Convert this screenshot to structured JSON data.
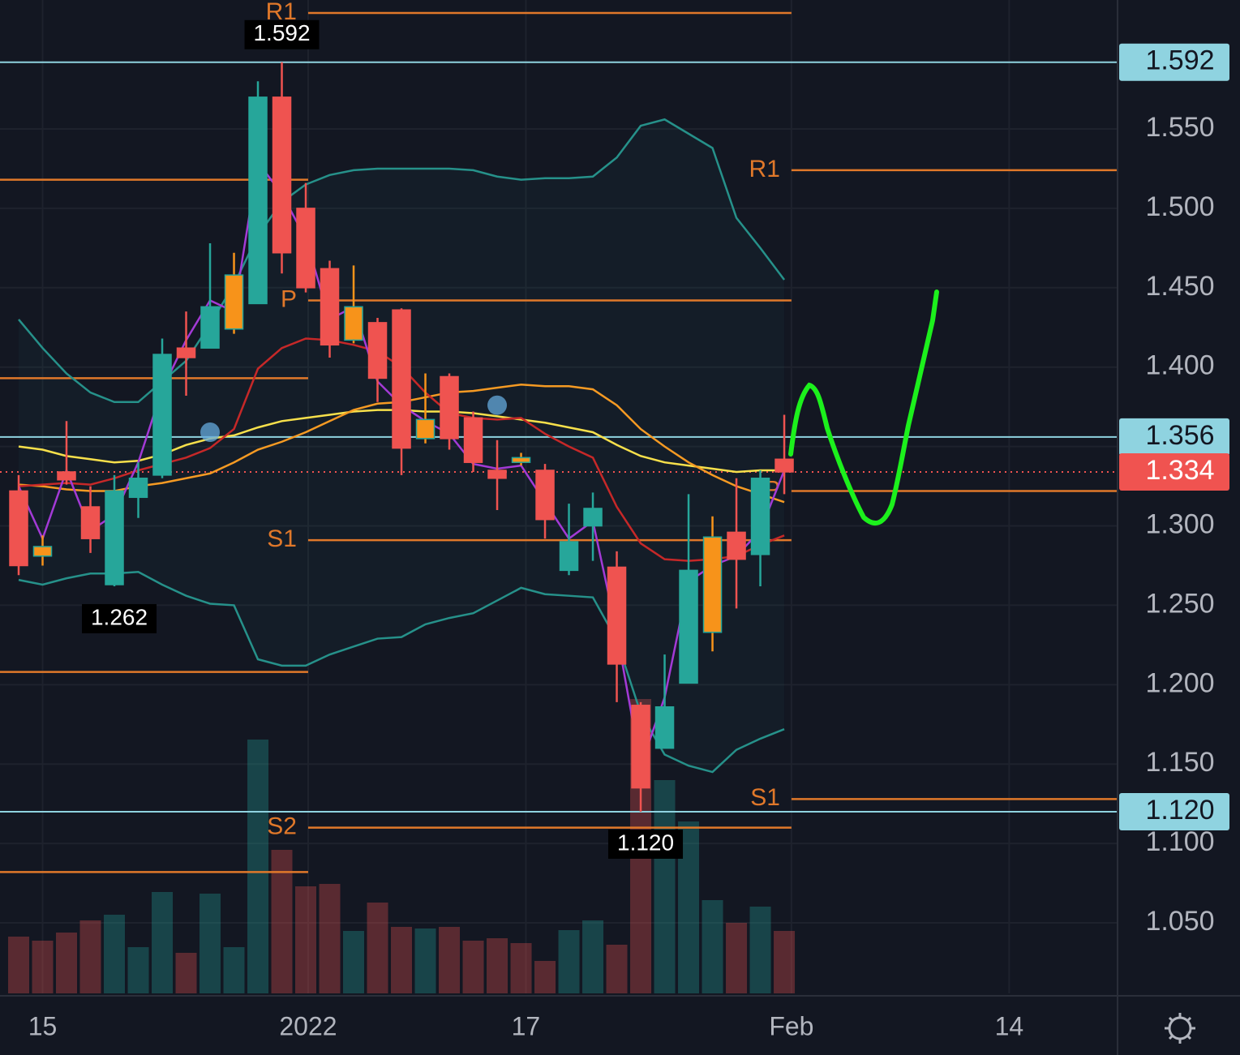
{
  "chart_data": {
    "type": "candlestick",
    "x": [
      0,
      1,
      2,
      3,
      4,
      5,
      6,
      7,
      8,
      9,
      10,
      11,
      12,
      13,
      14,
      15,
      16,
      17,
      18,
      19,
      20,
      21,
      22,
      23,
      24,
      25,
      26,
      27,
      28,
      29,
      30,
      31,
      32
    ],
    "open": [
      1.322,
      1.287,
      1.334,
      1.312,
      1.263,
      1.318,
      1.332,
      1.412,
      1.412,
      1.424,
      1.44,
      1.57,
      1.5,
      1.462,
      1.417,
      1.428,
      1.436,
      1.355,
      1.394,
      1.368,
      1.335,
      1.343,
      1.335,
      1.272,
      1.3,
      1.274,
      1.187,
      1.16,
      1.201,
      1.233,
      1.296,
      1.282,
      1.342
    ],
    "high": [
      1.332,
      1.294,
      1.366,
      1.325,
      1.332,
      1.34,
      1.418,
      1.435,
      1.478,
      1.472,
      1.58,
      1.592,
      1.516,
      1.467,
      1.464,
      1.431,
      1.437,
      1.396,
      1.396,
      1.372,
      1.354,
      1.346,
      1.339,
      1.314,
      1.321,
      1.284,
      1.189,
      1.219,
      1.32,
      1.306,
      1.33,
      1.335,
      1.37
    ],
    "low": [
      1.269,
      1.275,
      1.326,
      1.283,
      1.262,
      1.305,
      1.33,
      1.382,
      1.412,
      1.421,
      1.44,
      1.459,
      1.447,
      1.406,
      1.415,
      1.378,
      1.332,
      1.352,
      1.348,
      1.334,
      1.31,
      1.338,
      1.292,
      1.269,
      1.278,
      1.189,
      1.12,
      1.16,
      1.201,
      1.221,
      1.248,
      1.262,
      1.32
    ],
    "close": [
      1.275,
      1.281,
      1.329,
      1.292,
      1.322,
      1.33,
      1.408,
      1.406,
      1.438,
      1.458,
      1.57,
      1.472,
      1.45,
      1.414,
      1.438,
      1.393,
      1.349,
      1.367,
      1.355,
      1.34,
      1.33,
      1.34,
      1.304,
      1.29,
      1.311,
      1.213,
      1.135,
      1.186,
      1.272,
      1.293,
      1.279,
      1.33,
      1.334
    ],
    "colors": [
      "#ef5350",
      "#f7931a",
      "#ef5350",
      "#ef5350",
      "#26a69a",
      "#26a69a",
      "#26a69a",
      "#ef5350",
      "#26a69a",
      "#f7931a",
      "#26a69a",
      "#ef5350",
      "#ef5350",
      "#ef5350",
      "#f7931a",
      "#ef5350",
      "#ef5350",
      "#f7931a",
      "#ef5350",
      "#ef5350",
      "#ef5350",
      "#f7931a",
      "#ef5350",
      "#26a69a",
      "#26a69a",
      "#ef5350",
      "#ef5350",
      "#26a69a",
      "#26a69a",
      "#f7931a",
      "#ef5350",
      "#26a69a",
      "#ef5350"
    ],
    "volume": [
      70,
      65,
      75,
      90,
      97,
      57,
      125,
      50,
      123,
      57,
      313,
      177,
      132,
      135,
      77,
      112,
      82,
      80,
      82,
      65,
      68,
      62,
      40,
      78,
      90,
      60,
      363,
      263,
      212,
      115,
      87,
      107,
      77
    ],
    "vlim": [
      0,
      400
    ],
    "xlim": [
      -0.78,
      45.93
    ],
    "xticks": [
      {
        "value": 1,
        "label": "15"
      },
      {
        "value": 12.1,
        "label": "2022"
      },
      {
        "value": 21.2,
        "label": "17"
      },
      {
        "value": 32.3,
        "label": "Feb"
      },
      {
        "value": 41.4,
        "label": "14"
      }
    ],
    "ylim": [
      1.0056,
      1.6312
    ],
    "yticks": [
      {
        "value": 1.05,
        "label": "1.050"
      },
      {
        "value": 1.1,
        "label": "1.100"
      },
      {
        "value": 1.15,
        "label": "1.150"
      },
      {
        "value": 1.2,
        "label": "1.200"
      },
      {
        "value": 1.25,
        "label": "1.250"
      },
      {
        "value": 1.3,
        "label": "1.300"
      },
      {
        "value": 1.35,
        "label": "1.350"
      },
      {
        "value": 1.4,
        "label": "1.400"
      },
      {
        "value": 1.45,
        "label": "1.450"
      },
      {
        "value": 1.5,
        "label": "1.500"
      },
      {
        "value": 1.55,
        "label": "1.550"
      }
    ],
    "grid": true,
    "indicators": [
      {
        "color": "#26918a",
        "values": [
          1.43,
          1.412,
          1.396,
          1.384,
          1.378,
          1.378,
          1.391,
          1.404,
          1.427,
          1.452,
          1.483,
          1.504,
          1.515,
          1.521,
          1.524,
          1.525,
          1.525,
          1.525,
          1.525,
          1.524,
          1.52,
          1.518,
          1.519,
          1.519,
          1.52,
          1.532,
          1.552,
          1.556,
          1.547,
          1.538,
          1.494,
          1.475,
          1.455
        ]
      },
      {
        "color": "#26918a",
        "values": [
          1.266,
          1.263,
          1.267,
          1.27,
          1.27,
          1.271,
          1.263,
          1.256,
          1.251,
          1.25,
          1.216,
          1.212,
          1.212,
          1.219,
          1.224,
          1.229,
          1.23,
          1.238,
          1.242,
          1.245,
          1.253,
          1.261,
          1.257,
          1.256,
          1.255,
          1.228,
          1.182,
          1.156,
          1.149,
          1.145,
          1.159,
          1.166,
          1.172
        ]
      },
      {
        "color": "#f7e04b",
        "values": [
          1.35,
          1.348,
          1.344,
          1.342,
          1.34,
          1.341,
          1.345,
          1.351,
          1.355,
          1.357,
          1.362,
          1.366,
          1.368,
          1.37,
          1.372,
          1.373,
          1.373,
          1.372,
          1.372,
          1.371,
          1.369,
          1.367,
          1.365,
          1.362,
          1.359,
          1.351,
          1.344,
          1.34,
          1.338,
          1.336,
          1.334,
          1.335,
          1.335
        ]
      },
      {
        "color": "#f59a23",
        "values": [
          1.326,
          1.325,
          1.323,
          1.322,
          1.322,
          1.325,
          1.327,
          1.33,
          1.333,
          1.34,
          1.348,
          1.353,
          1.359,
          1.366,
          1.373,
          1.377,
          1.378,
          1.381,
          1.384,
          1.385,
          1.387,
          1.389,
          1.388,
          1.388,
          1.386,
          1.376,
          1.361,
          1.35,
          1.34,
          1.332,
          1.325,
          1.32,
          1.315
        ]
      },
      {
        "color": "#c62828",
        "values": [
          1.325,
          1.326,
          1.327,
          1.326,
          1.33,
          1.335,
          1.339,
          1.343,
          1.349,
          1.361,
          1.399,
          1.412,
          1.418,
          1.417,
          1.414,
          1.41,
          1.4,
          1.384,
          1.371,
          1.368,
          1.367,
          1.368,
          1.358,
          1.35,
          1.343,
          1.312,
          1.289,
          1.279,
          1.278,
          1.279,
          1.281,
          1.288,
          1.294
        ]
      },
      {
        "color": "#a33ad6",
        "values": [
          1.325,
          1.292,
          1.335,
          1.297,
          1.307,
          1.34,
          1.386,
          1.417,
          1.442,
          1.435,
          1.529,
          1.509,
          1.481,
          1.43,
          1.438,
          1.391,
          1.376,
          1.366,
          1.358,
          1.339,
          1.336,
          1.338,
          1.315,
          1.292,
          1.303,
          1.233,
          1.149,
          1.192,
          1.265,
          1.275,
          1.281,
          1.297,
          1.335
        ]
      }
    ],
    "price_lines": [
      {
        "value": 1.592,
        "label": "1.592",
        "color": "#8fd3e0"
      },
      {
        "value": 1.356,
        "label": "1.356",
        "color": "#8fd3e0"
      },
      {
        "value": 1.12,
        "label": "1.120",
        "color": "#8fd3e0"
      },
      {
        "value": 1.334,
        "label": "1.334",
        "color": "#f05350"
      }
    ],
    "pivots": [
      {
        "x0": -0.78,
        "x1": 12.1,
        "levels": [
          {
            "value": 1.518,
            "label": null
          },
          {
            "value": 1.393,
            "label": null
          },
          {
            "value": 1.208,
            "label": null
          },
          {
            "value": 1.082,
            "label": null
          }
        ]
      },
      {
        "x0": 12.1,
        "x1": 32.3,
        "levels": [
          {
            "value": 1.623,
            "label": "R1"
          },
          {
            "value": 1.442,
            "label": "P"
          },
          {
            "value": 1.291,
            "label": "S1"
          },
          {
            "value": 1.11,
            "label": "S2"
          }
        ]
      },
      {
        "x0": 32.3,
        "x1": 45.93,
        "levels": [
          {
            "value": 1.524,
            "label": "R1"
          },
          {
            "value": 1.322,
            "label": "P"
          },
          {
            "value": 1.128,
            "label": "S1"
          }
        ]
      }
    ],
    "annotations": [
      {
        "x": 11,
        "value": 1.592,
        "label": "1.592",
        "position": "above"
      },
      {
        "x": 4,
        "value": 1.262,
        "label": "1.262",
        "position": "below"
      },
      {
        "x": 26,
        "value": 1.12,
        "label": "1.120",
        "position": "below"
      }
    ],
    "markers": [
      {
        "x": 8,
        "value": 1.359
      },
      {
        "x": 20,
        "value": 1.376
      }
    ]
  }
}
